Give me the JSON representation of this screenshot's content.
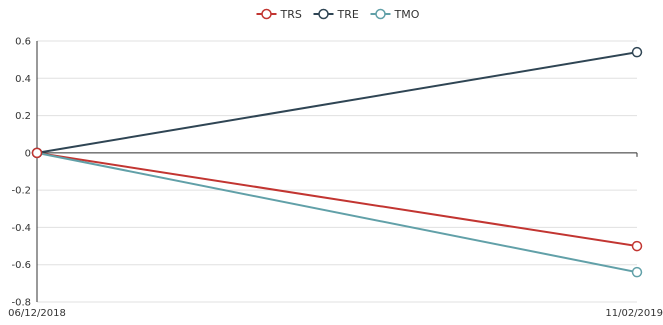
{
  "chart_data": {
    "type": "line",
    "x": [
      "06/12/2018",
      "11/02/2019"
    ],
    "series": [
      {
        "name": "TRS",
        "color": "#c23531",
        "values": [
          0,
          -0.5
        ]
      },
      {
        "name": "TRE",
        "color": "#2f4554",
        "values": [
          0,
          0.54
        ]
      },
      {
        "name": "TMO",
        "color": "#61a0a8",
        "values": [
          0,
          -0.64
        ]
      }
    ],
    "ylim": [
      -0.8,
      0.6
    ],
    "yticks": [
      "0.6",
      "0.4",
      "0.2",
      "0",
      "-0.2",
      "-0.4",
      "-0.6",
      "-0.8"
    ],
    "legend_position": "top-center",
    "grid": true
  }
}
